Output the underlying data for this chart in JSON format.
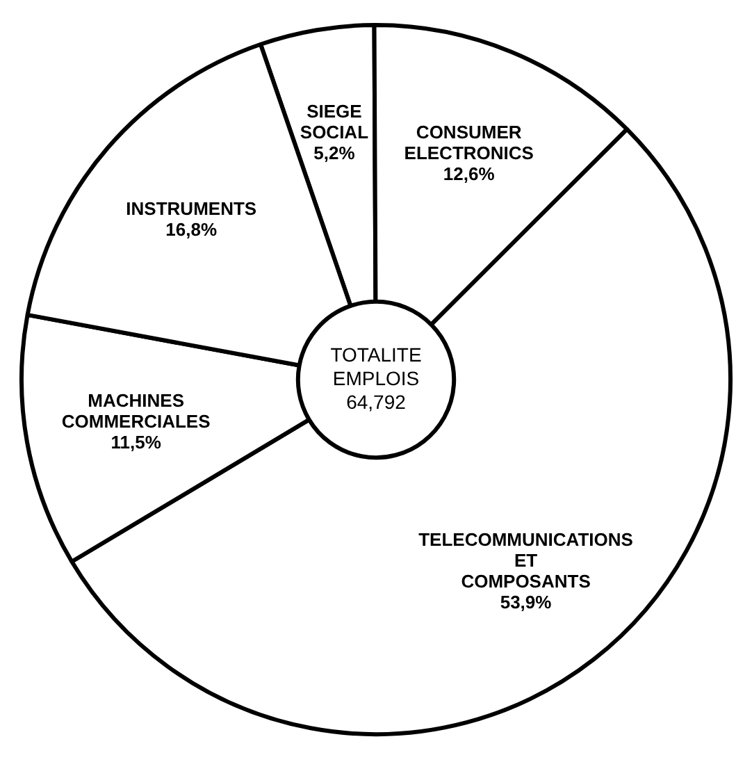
{
  "chart_data": {
    "type": "donut",
    "categories": [
      "SIEGE SOCIAL",
      "CONSUMER ELECTRONICS",
      "TELECOMMUNICATIONS ET COMPOSANTS",
      "MACHINES COMMERCIALES",
      "INSTRUMENTS"
    ],
    "values": [
      5.2,
      12.6,
      53.9,
      11.5,
      16.8
    ],
    "value_labels": [
      "5,2%",
      "12,6%",
      "53,9%",
      "11,5%",
      "16,8%"
    ],
    "colors": [
      "#ffffff",
      "#ffffff",
      "#ffffff",
      "#ffffff",
      "#ffffff"
    ],
    "annotations": [
      "TOTALITE EMPLOIS 64,792"
    ],
    "legend": false
  }
}
